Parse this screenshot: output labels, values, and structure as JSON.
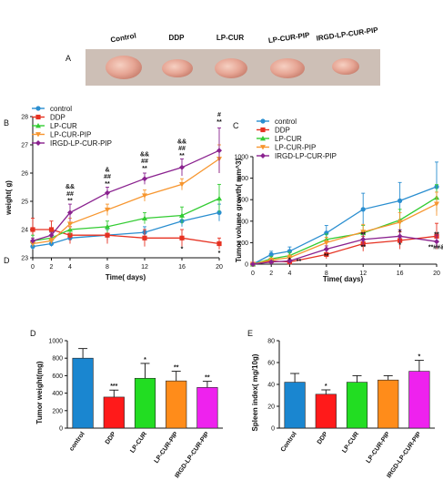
{
  "photo_panel": {
    "letter": "A",
    "labels": [
      "Control",
      "DDP",
      "LP-CUR",
      "LP-CUR-PIP",
      "IRGD-LP-CUR-PIP"
    ]
  },
  "colors": {
    "control": "#2a8ed0",
    "ddp": "#e63222",
    "lp_cur": "#33cc33",
    "lp_cur_pip": "#f7962f",
    "irgd": "#8a228f",
    "bar_control": "#1a86d0",
    "bar_ddp": "#ff1a1a",
    "bar_lp_cur": "#22dd22",
    "bar_lp_cur_pip": "#ff8c1a",
    "bar_irgd": "#ee22ee"
  },
  "chart_data": [
    {
      "id": "B",
      "type": "line",
      "letter": "B",
      "corner_label": "D",
      "x": [
        0,
        2,
        4,
        8,
        12,
        16,
        20
      ],
      "xticks": [
        "0",
        "2",
        "4",
        "8",
        "12",
        "16",
        "20"
      ],
      "yticks": [
        "23",
        "24",
        "25",
        "26",
        "27",
        "28"
      ],
      "ylim": [
        23,
        28
      ],
      "xlabel": "Time( days)",
      "ylabel": "weight( g)",
      "legend_position": "top-left",
      "series": [
        {
          "name": "control",
          "values": [
            23.4,
            23.5,
            23.7,
            23.8,
            23.9,
            24.3,
            24.6
          ],
          "err": [
            0.1,
            0.1,
            0.1,
            0.2,
            0.2,
            0.2,
            0.3
          ]
        },
        {
          "name": "DDP",
          "values": [
            24.0,
            24.0,
            23.8,
            23.8,
            23.7,
            23.7,
            23.5
          ],
          "err": [
            0.4,
            0.3,
            0.3,
            0.3,
            0.3,
            0.3,
            0.2
          ]
        },
        {
          "name": "LP-CUR",
          "values": [
            23.6,
            23.7,
            24.0,
            24.1,
            24.4,
            24.5,
            25.1
          ],
          "err": [
            0.2,
            0.2,
            0.2,
            0.2,
            0.2,
            0.3,
            0.5
          ]
        },
        {
          "name": "LP-CUR-PIP",
          "values": [
            23.5,
            23.6,
            24.2,
            24.7,
            25.2,
            25.6,
            26.5
          ],
          "err": [
            0.1,
            0.1,
            0.2,
            0.2,
            0.2,
            0.2,
            0.5
          ]
        },
        {
          "name": "IRGD-LP-CUR-PIP",
          "values": [
            23.6,
            23.8,
            24.6,
            25.3,
            25.8,
            26.2,
            26.8
          ],
          "err": [
            0.1,
            0.1,
            0.3,
            0.2,
            0.2,
            0.3,
            0.8
          ]
        }
      ],
      "annotations": [
        {
          "x": 4,
          "y_value": 24.95,
          "text": "**"
        },
        {
          "x": 4,
          "y_value": 25.2,
          "text": "##"
        },
        {
          "x": 4,
          "y_value": 25.45,
          "text": "&&"
        },
        {
          "x": 8,
          "y_value": 25.55,
          "text": "**"
        },
        {
          "x": 8,
          "y_value": 25.8,
          "text": "##"
        },
        {
          "x": 8,
          "y_value": 26.05,
          "text": "&"
        },
        {
          "x": 12,
          "y_value": 26.1,
          "text": "**"
        },
        {
          "x": 12,
          "y_value": 26.35,
          "text": "##"
        },
        {
          "x": 12,
          "y_value": 26.6,
          "text": "&&"
        },
        {
          "x": 16,
          "y_value": 26.55,
          "text": "**"
        },
        {
          "x": 16,
          "y_value": 26.8,
          "text": "##"
        },
        {
          "x": 16,
          "y_value": 27.05,
          "text": "&&"
        },
        {
          "x": 20,
          "y_value": 27.75,
          "text": "**"
        },
        {
          "x": 20,
          "y_value": 28.0,
          "text": "#"
        },
        {
          "x": 16,
          "y_value": 23.25,
          "text": "*"
        },
        {
          "x": 20,
          "y_value": 23.1,
          "text": "*"
        }
      ]
    },
    {
      "id": "C",
      "type": "line",
      "letter": "C",
      "x": [
        0,
        2,
        4,
        8,
        12,
        16,
        20
      ],
      "xticks": [
        "0",
        "2",
        "4",
        "8",
        "12",
        "16",
        "20"
      ],
      "yticks": [
        "0",
        "200",
        "400",
        "600",
        "800",
        "1000"
      ],
      "ylim": [
        0,
        1000
      ],
      "xlabel": "Time( days)",
      "ylabel": "Tumor volume growth( mm^3)",
      "legend_position": "top-left",
      "series": [
        {
          "name": "control",
          "values": [
            0,
            90,
            120,
            290,
            510,
            590,
            720
          ],
          "err": [
            0,
            30,
            40,
            70,
            150,
            170,
            230
          ]
        },
        {
          "name": "DDP",
          "values": [
            0,
            30,
            20,
            90,
            190,
            220,
            260
          ],
          "err": [
            0,
            15,
            15,
            40,
            70,
            80,
            120
          ]
        },
        {
          "name": "LP-CUR",
          "values": [
            0,
            50,
            80,
            230,
            290,
            410,
            620
          ],
          "err": [
            0,
            20,
            30,
            50,
            70,
            100,
            120
          ]
        },
        {
          "name": "LP-CUR-PIP",
          "values": [
            0,
            40,
            60,
            200,
            300,
            390,
            560
          ],
          "err": [
            0,
            15,
            25,
            50,
            70,
            90,
            110
          ]
        },
        {
          "name": "IRGD-LP-CUR-PIP",
          "values": [
            0,
            20,
            30,
            140,
            230,
            260,
            210
          ],
          "err": [
            0,
            10,
            15,
            30,
            60,
            60,
            60
          ]
        }
      ],
      "annotations": [
        {
          "x": 4,
          "y_value": 20,
          "text": "*"
        },
        {
          "x": 5,
          "y_value": 10,
          "text": "**"
        },
        {
          "x": 8,
          "y_value": 60,
          "text": "**"
        },
        {
          "x": 12,
          "y_value": 260,
          "text": "**"
        },
        {
          "x": 12,
          "y_value": 140,
          "text": "**"
        },
        {
          "x": 16,
          "y_value": 280,
          "text": "*"
        },
        {
          "x": 16,
          "y_value": 160,
          "text": "*"
        },
        {
          "x": 20,
          "y_value": 260,
          "text": "**"
        },
        {
          "x": 20,
          "y_value": 140,
          "text": "**##&"
        }
      ]
    },
    {
      "id": "D",
      "type": "bar",
      "letter": "D",
      "categories": [
        "control",
        "DDP",
        "LP-CUR",
        "LP-CUR-PIP",
        "IRGD-LP-CUR-PIP"
      ],
      "values": [
        800,
        355,
        570,
        540,
        465
      ],
      "err": [
        110,
        80,
        170,
        110,
        70
      ],
      "sig": [
        "",
        "***",
        "*",
        "**",
        "**"
      ],
      "yticks": [
        "0",
        "200",
        "400",
        "600",
        "800",
        "1000"
      ],
      "ylim": [
        0,
        1000
      ],
      "ylabel": "Tumor weight(mg)"
    },
    {
      "id": "E",
      "type": "bar",
      "letter": "E",
      "categories": [
        "Control",
        "DDP",
        "LP-CUR",
        "LP-CUR-PIP",
        "IRGD-LP-CUR-PIP"
      ],
      "values": [
        42,
        31,
        42,
        44,
        52
      ],
      "err": [
        8,
        4,
        6,
        4,
        10
      ],
      "sig": [
        "",
        "*",
        "",
        "",
        "*"
      ],
      "yticks": [
        "0",
        "20",
        "40",
        "60",
        "80"
      ],
      "ylim": [
        0,
        80
      ],
      "ylabel": "Spleen index( mg/10g)"
    }
  ]
}
